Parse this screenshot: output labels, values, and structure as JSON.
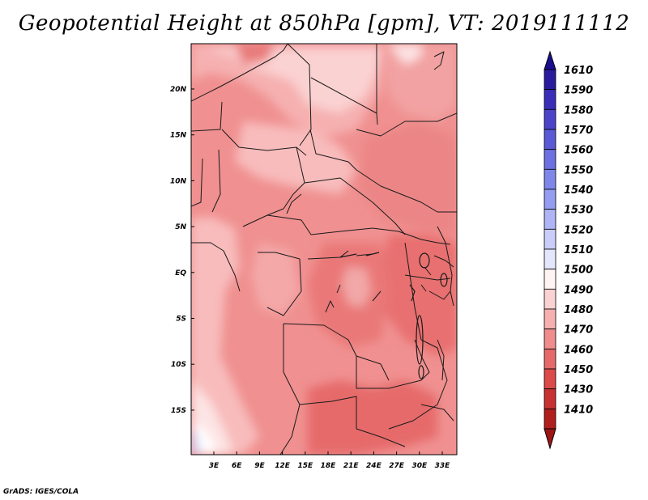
{
  "title": "Geopotential Height at 850hPa [gpm], VT: 2019111112",
  "credit": "GrADS: IGES/COLA",
  "colors": {
    "frame": "#000000",
    "border": "#1a1a1a",
    "background": "#f09090"
  },
  "map": {
    "lon_labels": [
      "3E",
      "6E",
      "9E",
      "12E",
      "15E",
      "18E",
      "21E",
      "24E",
      "27E",
      "30E",
      "33E"
    ],
    "lat_labels": [
      "20N",
      "15N",
      "10N",
      "5N",
      "EQ",
      "5S",
      "10S",
      "15S"
    ]
  },
  "colorbar": {
    "levels": [
      "1610",
      "1590",
      "1580",
      "1570",
      "1560",
      "1550",
      "1540",
      "1530",
      "1520",
      "1510",
      "1500",
      "1490",
      "1480",
      "1470",
      "1460",
      "1450",
      "1430",
      "1410"
    ],
    "colors": [
      "#2a1a9e",
      "#3a2eb8",
      "#4b44c8",
      "#5b5ad6",
      "#6c70e0",
      "#7f86ea",
      "#959df0",
      "#aeb4f4",
      "#c9cdf8",
      "#e4e6fc",
      "#fff4f4",
      "#fbd2d2",
      "#f6b0b0",
      "#ef8c8c",
      "#e66a6a",
      "#dc4a4a",
      "#c83232",
      "#b01e1e"
    ],
    "top_arrow": "#1a0f8f",
    "bottom_arrow": "#9e1414"
  }
}
